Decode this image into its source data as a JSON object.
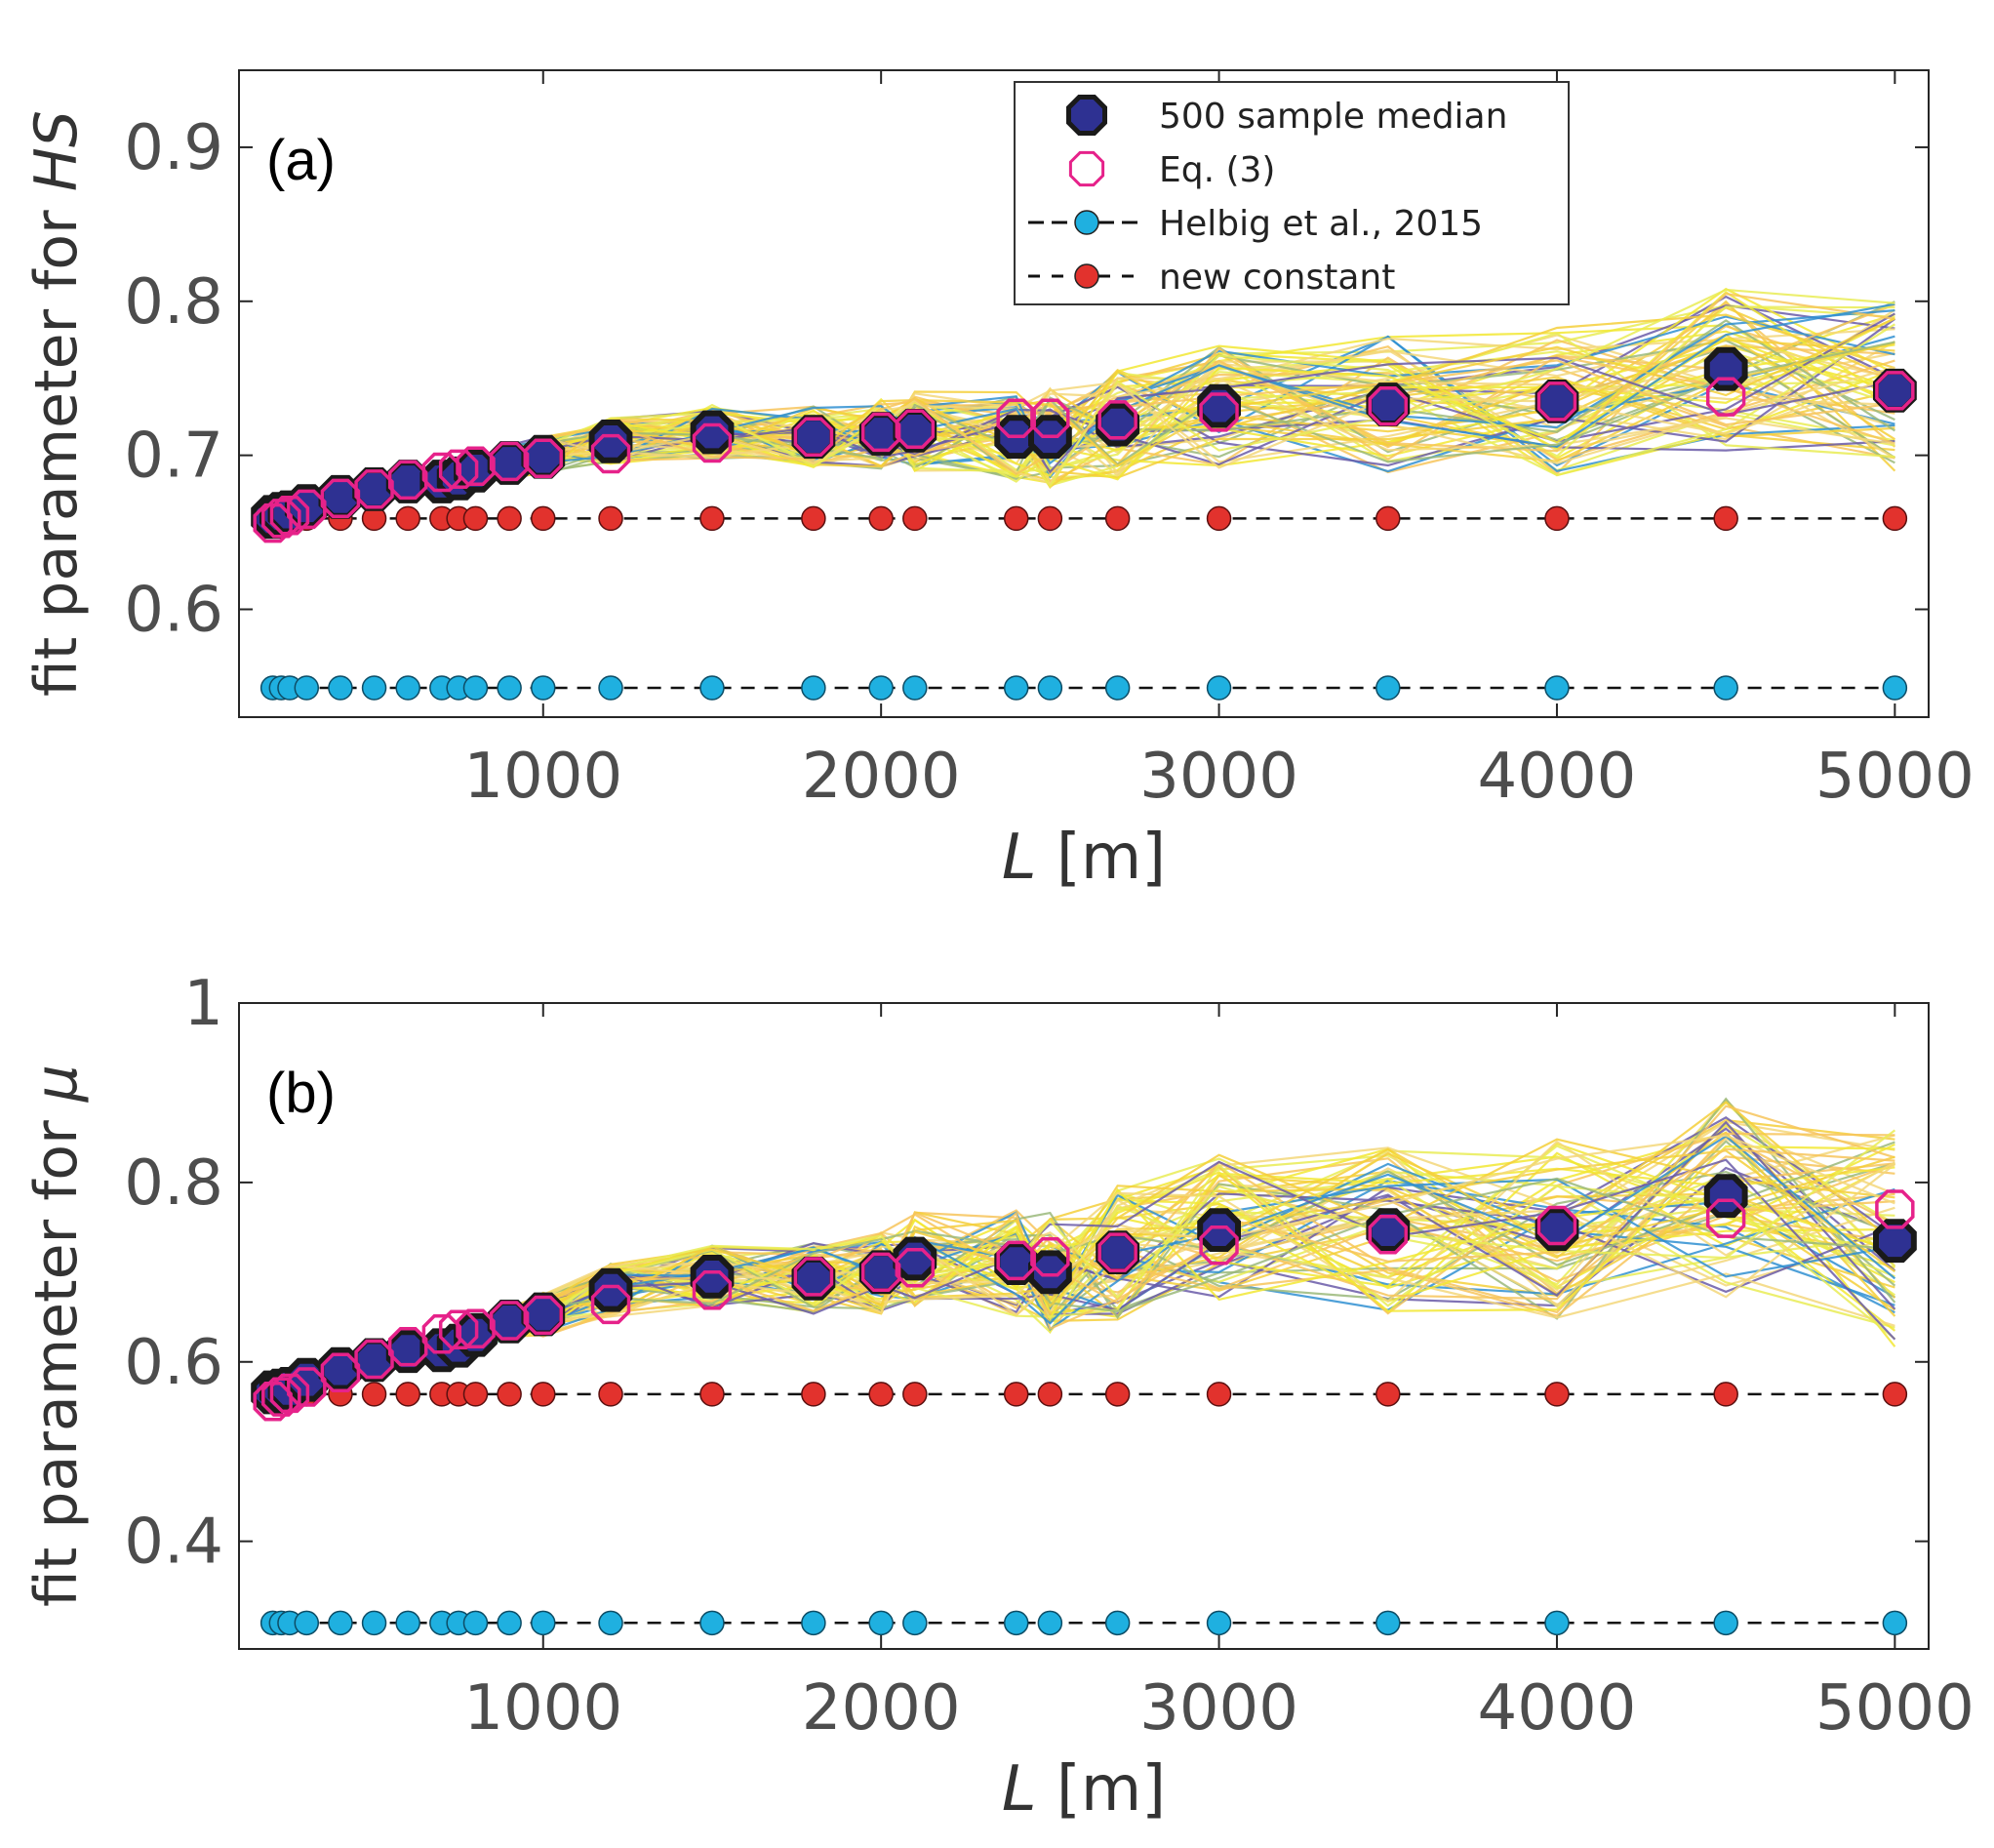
{
  "chart_data": [
    {
      "type": "line",
      "panel_label": "(a)",
      "xlabel_var": "L",
      "xlabel_unit": " [m]",
      "ylabel_text": "fit parameter for ",
      "ylabel_var": "HS",
      "xlim": [
        100,
        5100
      ],
      "ylim": [
        0.53,
        0.95
      ],
      "xticks": [
        1000,
        2000,
        3000,
        4000,
        5000
      ],
      "xtick_labels": [
        "1000",
        "2000",
        "3000",
        "4000",
        "5000"
      ],
      "yticks": [
        0.6,
        0.7,
        0.8,
        0.9
      ],
      "ytick_labels": [
        "0.6",
        "0.7",
        "0.8",
        "0.9"
      ],
      "grid": false,
      "x": [
        200,
        225,
        250,
        300,
        400,
        500,
        600,
        700,
        750,
        800,
        900,
        1000,
        1200,
        1500,
        1800,
        2000,
        2100,
        2400,
        2500,
        2700,
        3000,
        3500,
        4000,
        4500,
        5000
      ],
      "series": [
        {
          "key": "median",
          "values": [
            0.66,
            0.662,
            0.663,
            0.667,
            0.673,
            0.678,
            0.683,
            0.683,
            0.685,
            0.69,
            0.695,
            0.699,
            0.709,
            0.715,
            0.712,
            0.714,
            0.716,
            0.712,
            0.712,
            0.72,
            0.732,
            0.733,
            0.735,
            0.756,
            0.742
          ]
        },
        {
          "key": "eq3",
          "values": [
            0.656,
            0.659,
            0.661,
            0.665,
            0.672,
            0.678,
            0.684,
            0.689,
            0.691,
            0.693,
            0.696,
            0.698,
            0.701,
            0.708,
            0.712,
            0.715,
            0.717,
            0.724,
            0.724,
            0.723,
            0.728,
            0.732,
            0.735,
            0.738,
            0.742
          ]
        },
        {
          "key": "helbig",
          "values": [
            0.549,
            0.549,
            0.549,
            0.549,
            0.549,
            0.549,
            0.549,
            0.549,
            0.549,
            0.549,
            0.549,
            0.549,
            0.549,
            0.549,
            0.549,
            0.549,
            0.549,
            0.549,
            0.549,
            0.549,
            0.549,
            0.549,
            0.549,
            0.549,
            0.549
          ]
        },
        {
          "key": "new_constant",
          "values": [
            0.659,
            0.659,
            0.659,
            0.659,
            0.659,
            0.659,
            0.659,
            0.659,
            0.659,
            0.659,
            0.659,
            0.659,
            0.659,
            0.659,
            0.659,
            0.659,
            0.659,
            0.659,
            0.659,
            0.659,
            0.659,
            0.659,
            0.659,
            0.659,
            0.659
          ]
        }
      ],
      "legend": {
        "placement": "top-center",
        "entries": [
          {
            "key": "median",
            "label": "500 sample median"
          },
          {
            "key": "eq3",
            "label": "Eq. (3)"
          },
          {
            "key": "helbig",
            "label": "Helbig et al., 2015"
          },
          {
            "key": "new_constant",
            "label": "new constant"
          }
        ]
      }
    },
    {
      "type": "line",
      "panel_label": "(b)",
      "xlabel_var": "L",
      "xlabel_unit": " [m]",
      "ylabel_text": "fit parameter for ",
      "ylabel_var": "μ",
      "xlim": [
        100,
        5100
      ],
      "ylim": [
        0.28,
        1.0
      ],
      "xticks": [
        1000,
        2000,
        3000,
        4000,
        5000
      ],
      "xtick_labels": [
        "1000",
        "2000",
        "3000",
        "4000",
        "5000"
      ],
      "yticks": [
        0.4,
        0.6,
        0.8,
        1.0
      ],
      "ytick_labels": [
        "0.4",
        "0.6",
        "0.8",
        "1"
      ],
      "grid": false,
      "x": [
        200,
        225,
        250,
        300,
        400,
        500,
        600,
        700,
        750,
        800,
        900,
        1000,
        1200,
        1500,
        1800,
        2000,
        2100,
        2400,
        2500,
        2700,
        3000,
        3500,
        4000,
        4500,
        5000
      ],
      "series": [
        {
          "key": "median",
          "values": [
            0.566,
            0.568,
            0.57,
            0.58,
            0.592,
            0.602,
            0.612,
            0.613,
            0.618,
            0.63,
            0.645,
            0.653,
            0.68,
            0.695,
            0.693,
            0.7,
            0.715,
            0.71,
            0.7,
            0.722,
            0.747,
            0.747,
            0.748,
            0.785,
            0.735
          ]
        },
        {
          "key": "eq3",
          "values": [
            0.556,
            0.561,
            0.565,
            0.572,
            0.588,
            0.603,
            0.617,
            0.631,
            0.636,
            0.637,
            0.646,
            0.652,
            0.664,
            0.68,
            0.695,
            0.7,
            0.705,
            0.713,
            0.717,
            0.722,
            0.73,
            0.742,
            0.752,
            0.76,
            0.77
          ]
        },
        {
          "key": "helbig",
          "values": [
            0.309,
            0.309,
            0.309,
            0.309,
            0.309,
            0.309,
            0.309,
            0.309,
            0.309,
            0.309,
            0.309,
            0.309,
            0.309,
            0.309,
            0.309,
            0.309,
            0.309,
            0.309,
            0.309,
            0.309,
            0.309,
            0.309,
            0.309,
            0.309,
            0.309
          ]
        },
        {
          "key": "new_constant",
          "values": [
            0.564,
            0.564,
            0.564,
            0.564,
            0.564,
            0.564,
            0.564,
            0.564,
            0.564,
            0.564,
            0.564,
            0.564,
            0.564,
            0.564,
            0.564,
            0.564,
            0.564,
            0.564,
            0.564,
            0.564,
            0.564,
            0.564,
            0.564,
            0.564,
            0.564
          ]
        }
      ]
    }
  ],
  "colors": {
    "median_fill": "#2e3192",
    "median_edge": "#1a1a1a",
    "eq3_edge": "#e6228a",
    "helbig_fill": "#1fb0e0",
    "new_constant_fill": "#e2322d",
    "dashed_line": "#111111",
    "band_colors": [
      "#f2e733",
      "#f5cf3a",
      "#f3d77a",
      "#e9ec55",
      "#f7c45a",
      "#2f8fd1",
      "#6a5aa8",
      "#9ab97a"
    ],
    "axis": "#262626"
  }
}
